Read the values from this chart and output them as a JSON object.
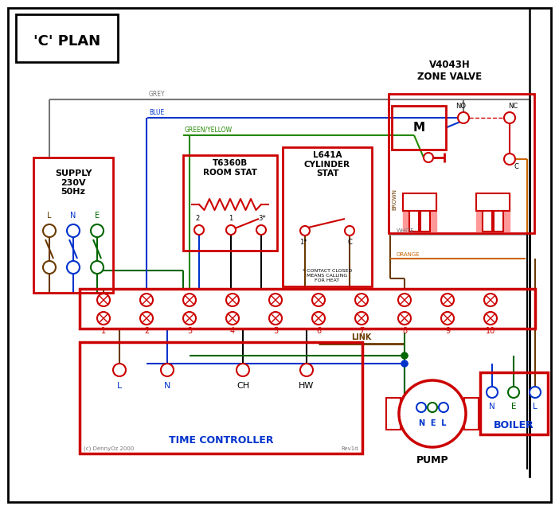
{
  "title": "'C' PLAN",
  "bg_color": "#ffffff",
  "red": "#cc0000",
  "blue": "#0033cc",
  "green": "#006600",
  "brown": "#6b3a00",
  "grey": "#777777",
  "orange": "#cc6600",
  "green_yellow": "#228800",
  "black": "#000000",
  "pink": "#ff9999",
  "supply_text": "SUPPLY\n230V\n50Hz",
  "room_stat_title": "T6360B\nROOM STAT",
  "cyl_stat_title": "L641A\nCYLINDER\nSTAT",
  "zone_valve_title": "V4043H\nZONE VALVE",
  "time_ctrl_title": "TIME CONTROLLER",
  "pump_title": "PUMP",
  "boiler_title": "BOILER",
  "link_label": "LINK",
  "copyright": "(c) DennyOz 2000",
  "rev": "Rev1d",
  "contact_note": "* CONTACT CLOSED\nMEANS CALLING\nFOR HEAT"
}
